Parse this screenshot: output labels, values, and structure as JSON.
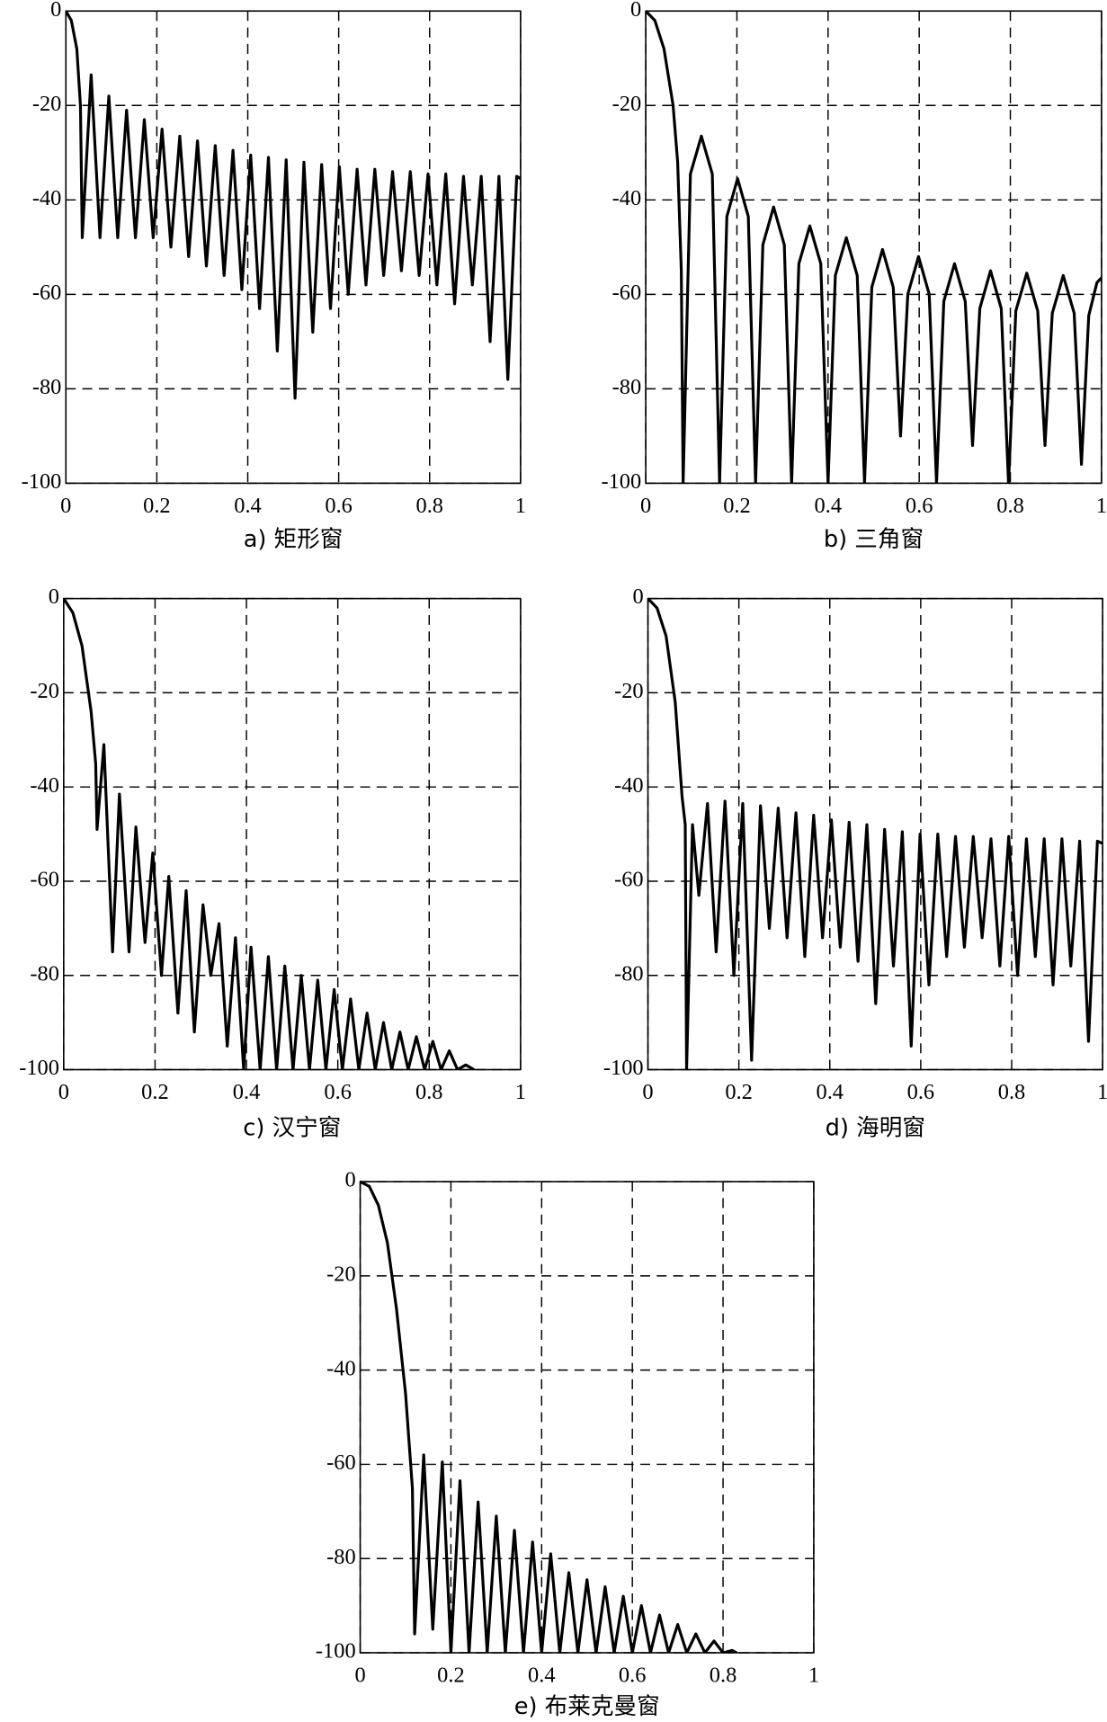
{
  "chart_data": [
    {
      "type": "line",
      "caption": "a) 矩形窗",
      "grid": true,
      "color": "#000000",
      "xlim": [
        0,
        1
      ],
      "ylim": [
        -100,
        0
      ],
      "xticks": [
        0,
        0.2,
        0.4,
        0.6,
        0.8,
        1
      ],
      "yticks": [
        0,
        -20,
        -40,
        -60,
        -80,
        -100
      ],
      "x": [
        0,
        0.012,
        0.024,
        0.032,
        0.036,
        0.0555,
        0.075,
        0.0945,
        0.114,
        0.1335,
        0.153,
        0.1725,
        0.192,
        0.2115,
        0.231,
        0.2505,
        0.27,
        0.2895,
        0.309,
        0.3285,
        0.348,
        0.3675,
        0.387,
        0.4065,
        0.426,
        0.4455,
        0.465,
        0.4845,
        0.504,
        0.5235,
        0.543,
        0.5625,
        0.582,
        0.6015,
        0.621,
        0.6405,
        0.66,
        0.6795,
        0.699,
        0.7185,
        0.738,
        0.7575,
        0.777,
        0.7965,
        0.816,
        0.8355,
        0.855,
        0.8745,
        0.894,
        0.9135,
        0.933,
        0.9525,
        0.972,
        0.9915,
        1
      ],
      "values": [
        0,
        -2,
        -8,
        -20,
        -48,
        -13.5,
        -48,
        -18,
        -48,
        -21,
        -48,
        -23,
        -48,
        -25,
        -50,
        -26.5,
        -52,
        -27.5,
        -54,
        -28.5,
        -56,
        -29.5,
        -59,
        -30.5,
        -63,
        -31,
        -72,
        -31.5,
        -82,
        -32,
        -68,
        -32.5,
        -63,
        -33,
        -60,
        -33.5,
        -58,
        -33.5,
        -56,
        -34,
        -55,
        -34,
        -56,
        -34.5,
        -58,
        -34.5,
        -62,
        -35,
        -58,
        -35,
        -70,
        -35,
        -78,
        -35,
        -35.5
      ]
    },
    {
      "type": "line",
      "caption": "b) 三角窗",
      "grid": true,
      "color": "#000000",
      "xlim": [
        0,
        1
      ],
      "ylim": [
        -100,
        0
      ],
      "xticks": [
        0,
        0.2,
        0.4,
        0.6,
        0.8,
        1
      ],
      "yticks": [
        0,
        -20,
        -40,
        -60,
        -80,
        -100
      ],
      "x": [
        0,
        0.02,
        0.04,
        0.06,
        0.07,
        0.078,
        0.082,
        0.098,
        0.122,
        0.146,
        0.162,
        0.178,
        0.2015,
        0.225,
        0.241,
        0.257,
        0.2805,
        0.304,
        0.32,
        0.336,
        0.36,
        0.384,
        0.4,
        0.416,
        0.44,
        0.464,
        0.48,
        0.496,
        0.5195,
        0.543,
        0.559,
        0.575,
        0.5985,
        0.622,
        0.638,
        0.654,
        0.6775,
        0.701,
        0.717,
        0.733,
        0.7565,
        0.78,
        0.796,
        0.812,
        0.836,
        0.86,
        0.876,
        0.892,
        0.916,
        0.94,
        0.956,
        0.972,
        0.99,
        1
      ],
      "values": [
        0,
        -2,
        -8,
        -20,
        -32,
        -55,
        -100,
        -34.5,
        -26.5,
        -34.5,
        -100,
        -43.5,
        -35.5,
        -43.5,
        -100,
        -49.5,
        -41.5,
        -49.5,
        -100,
        -53.5,
        -45.5,
        -53.5,
        -100,
        -56,
        -48,
        -56,
        -100,
        -58.5,
        -50.5,
        -58.5,
        -90,
        -60,
        -52,
        -60,
        -100,
        -61.5,
        -53.5,
        -61.5,
        -92,
        -63,
        -55,
        -63,
        -100,
        -63.5,
        -55.5,
        -63.5,
        -92,
        -64,
        -56,
        -64,
        -96,
        -64.5,
        -57.5,
        -56.5
      ]
    },
    {
      "type": "line",
      "caption": "c) 汉宁窗",
      "grid": true,
      "color": "#000000",
      "xlim": [
        0,
        1
      ],
      "ylim": [
        -100,
        0
      ],
      "xticks": [
        0,
        0.2,
        0.4,
        0.6,
        0.8,
        1
      ],
      "yticks": [
        0,
        -20,
        -40,
        -60,
        -80,
        -100
      ],
      "x": [
        0,
        0.02,
        0.04,
        0.06,
        0.07,
        0.073,
        0.088,
        0.107,
        0.122,
        0.143,
        0.158,
        0.178,
        0.195,
        0.214,
        0.23,
        0.25,
        0.268,
        0.286,
        0.305,
        0.322,
        0.34,
        0.358,
        0.376,
        0.394,
        0.41,
        0.43,
        0.448,
        0.466,
        0.484,
        0.502,
        0.52,
        0.538,
        0.556,
        0.574,
        0.592,
        0.61,
        0.628,
        0.646,
        0.664,
        0.682,
        0.7,
        0.718,
        0.736,
        0.754,
        0.772,
        0.79,
        0.808,
        0.826,
        0.844,
        0.862,
        0.88,
        0.898
      ],
      "values": [
        0,
        -3,
        -10,
        -24,
        -35,
        -49,
        -31,
        -75,
        -41.5,
        -75,
        -48.5,
        -73,
        -54,
        -80,
        -59,
        -88,
        -62,
        -92,
        -65,
        -80,
        -69,
        -95,
        -72,
        -100,
        -74,
        -100,
        -76,
        -100,
        -78,
        -100,
        -80,
        -100,
        -81,
        -100,
        -83,
        -100,
        -85,
        -100,
        -88,
        -100,
        -90,
        -100,
        -92,
        -100,
        -93,
        -100,
        -94,
        -100,
        -96,
        -100,
        -99,
        -100
      ]
    },
    {
      "type": "line",
      "caption": "d) 海明窗",
      "grid": true,
      "color": "#000000",
      "xlim": [
        0,
        1
      ],
      "ylim": [
        -100,
        0
      ],
      "xticks": [
        0,
        0.2,
        0.4,
        0.6,
        0.8,
        1
      ],
      "yticks": [
        0,
        -20,
        -40,
        -60,
        -80,
        -100
      ],
      "x": [
        0,
        0.02,
        0.04,
        0.06,
        0.075,
        0.082,
        0.085,
        0.098,
        0.112,
        0.131,
        0.15,
        0.1695,
        0.189,
        0.2085,
        0.228,
        0.2475,
        0.267,
        0.2865,
        0.306,
        0.3255,
        0.345,
        0.3645,
        0.384,
        0.4035,
        0.423,
        0.4425,
        0.462,
        0.4815,
        0.501,
        0.5205,
        0.54,
        0.5595,
        0.579,
        0.5985,
        0.618,
        0.6375,
        0.657,
        0.6765,
        0.696,
        0.7155,
        0.735,
        0.7545,
        0.774,
        0.7935,
        0.813,
        0.8325,
        0.852,
        0.8715,
        0.891,
        0.9105,
        0.93,
        0.9495,
        0.969,
        0.9885,
        1
      ],
      "values": [
        0,
        -2,
        -8,
        -22,
        -42,
        -48,
        -100,
        -48,
        -63,
        -43.5,
        -75,
        -43,
        -80,
        -43.5,
        -98,
        -44,
        -70,
        -44.5,
        -72,
        -45.5,
        -76,
        -46,
        -72,
        -47,
        -74,
        -47.5,
        -77,
        -48,
        -86,
        -49,
        -78,
        -49.5,
        -95,
        -50,
        -82,
        -50,
        -76,
        -50.5,
        -74,
        -50.5,
        -72,
        -51,
        -78,
        -50.5,
        -80,
        -51,
        -76,
        -51,
        -82,
        -51,
        -78,
        -51.5,
        -94,
        -51.5,
        -52
      ]
    },
    {
      "type": "line",
      "caption": "e) 布莱克曼窗",
      "grid": true,
      "color": "#000000",
      "xlim": [
        0,
        1
      ],
      "ylim": [
        -100,
        0
      ],
      "xticks": [
        0,
        0.2,
        0.4,
        0.6,
        0.8,
        1
      ],
      "yticks": [
        0,
        -20,
        -40,
        -60,
        -80,
        -100
      ],
      "x": [
        0,
        0.02,
        0.04,
        0.06,
        0.08,
        0.1,
        0.115,
        0.12,
        0.14,
        0.16,
        0.181,
        0.2,
        0.22,
        0.24,
        0.26,
        0.28,
        0.3,
        0.32,
        0.34,
        0.36,
        0.38,
        0.4,
        0.42,
        0.44,
        0.46,
        0.48,
        0.5,
        0.52,
        0.54,
        0.56,
        0.58,
        0.6,
        0.62,
        0.64,
        0.66,
        0.68,
        0.7,
        0.72,
        0.74,
        0.76,
        0.78,
        0.8,
        0.82,
        0.83
      ],
      "values": [
        0,
        -1,
        -5,
        -13,
        -27,
        -45,
        -65,
        -96,
        -58,
        -95,
        -59.5,
        -100,
        -63.5,
        -100,
        -68,
        -100,
        -71,
        -100,
        -74,
        -100,
        -76.5,
        -100,
        -79,
        -100,
        -83,
        -100,
        -84.5,
        -100,
        -86,
        -100,
        -88,
        -100,
        -90,
        -100,
        -92,
        -100,
        -94,
        -100,
        -96,
        -100,
        -97.5,
        -100,
        -99.5,
        -100
      ]
    }
  ]
}
